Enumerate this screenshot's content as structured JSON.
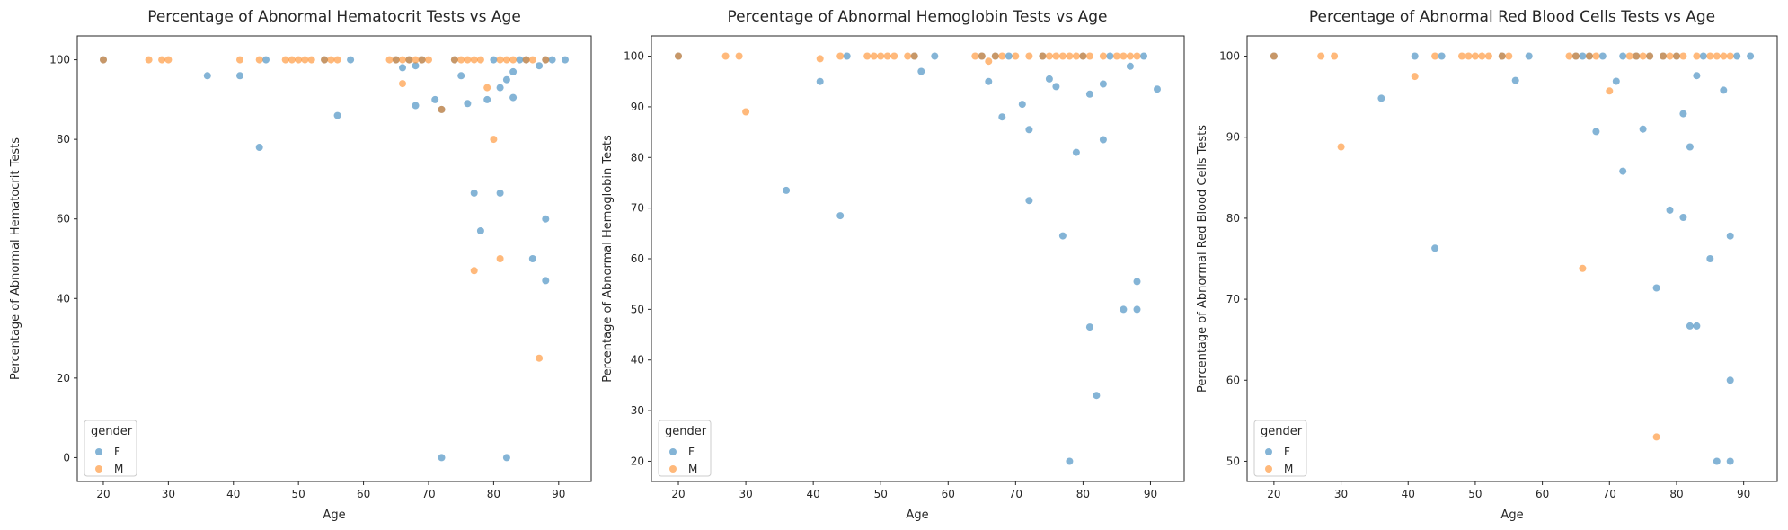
{
  "colors": {
    "F": "#1f77b4",
    "M": "#ff7f0e",
    "axes": "#262626",
    "background": "#ffffff"
  },
  "chart_data": [
    {
      "type": "scatter",
      "title": "Percentage of Abnormal Hematocrit Tests vs Age",
      "xlabel": "Age",
      "ylabel": "Percentage of Abnormal Hematocrit Tests",
      "xlim": [
        16,
        95
      ],
      "ylim": [
        -6,
        106
      ],
      "xticks": [
        20,
        30,
        40,
        50,
        60,
        70,
        80,
        90
      ],
      "yticks": [
        0,
        20,
        40,
        60,
        80,
        100
      ],
      "grid": false,
      "legend": {
        "title": "gender",
        "placement": "lower-left",
        "entries": [
          "F",
          "M"
        ]
      },
      "series": [
        {
          "name": "F",
          "color": "#1f77b4",
          "points": [
            [
              20,
              100
            ],
            [
              36,
              96
            ],
            [
              41,
              96
            ],
            [
              44,
              78
            ],
            [
              45,
              100
            ],
            [
              54,
              100
            ],
            [
              56,
              86
            ],
            [
              58,
              100
            ],
            [
              65,
              100
            ],
            [
              66,
              98
            ],
            [
              67,
              100
            ],
            [
              68,
              88.5
            ],
            [
              68,
              98.5
            ],
            [
              69,
              100
            ],
            [
              71,
              90
            ],
            [
              72,
              87.5
            ],
            [
              72,
              0
            ],
            [
              74,
              100
            ],
            [
              75,
              96
            ],
            [
              76,
              89
            ],
            [
              78,
              57
            ],
            [
              77,
              66.5
            ],
            [
              79,
              90
            ],
            [
              80,
              100
            ],
            [
              81,
              93
            ],
            [
              81,
              66.5
            ],
            [
              82,
              95
            ],
            [
              82,
              0
            ],
            [
              83,
              97
            ],
            [
              83,
              90.5
            ],
            [
              84,
              100
            ],
            [
              85,
              100
            ],
            [
              86,
              50
            ],
            [
              87,
              98.5
            ],
            [
              88,
              100
            ],
            [
              88,
              60
            ],
            [
              88,
              44.5
            ],
            [
              89,
              100
            ],
            [
              91,
              100
            ]
          ]
        },
        {
          "name": "M",
          "color": "#ff7f0e",
          "points": [
            [
              20,
              100
            ],
            [
              27,
              100
            ],
            [
              29,
              100
            ],
            [
              30,
              100
            ],
            [
              41,
              100
            ],
            [
              44,
              100
            ],
            [
              48,
              100
            ],
            [
              49,
              100
            ],
            [
              50,
              100
            ],
            [
              51,
              100
            ],
            [
              52,
              100
            ],
            [
              54,
              100
            ],
            [
              55,
              100
            ],
            [
              56,
              100
            ],
            [
              64,
              100
            ],
            [
              65,
              100
            ],
            [
              66,
              100
            ],
            [
              66,
              94
            ],
            [
              67,
              100
            ],
            [
              68,
              100
            ],
            [
              69,
              100
            ],
            [
              70,
              100
            ],
            [
              72,
              87.5
            ],
            [
              74,
              100
            ],
            [
              75,
              100
            ],
            [
              76,
              100
            ],
            [
              77,
              100
            ],
            [
              77,
              47
            ],
            [
              78,
              100
            ],
            [
              79,
              93
            ],
            [
              80,
              80
            ],
            [
              81,
              100
            ],
            [
              81,
              50
            ],
            [
              82,
              100
            ],
            [
              83,
              100
            ],
            [
              85,
              100
            ],
            [
              86,
              100
            ],
            [
              87,
              25
            ],
            [
              88,
              100
            ]
          ]
        }
      ]
    },
    {
      "type": "scatter",
      "title": "Percentage of Abnormal Hemoglobin Tests vs Age",
      "xlabel": "Age",
      "ylabel": "Percentage of Abnormal Hemoglobin Tests",
      "xlim": [
        16,
        95
      ],
      "ylim": [
        16,
        104
      ],
      "xticks": [
        20,
        30,
        40,
        50,
        60,
        70,
        80,
        90
      ],
      "yticks": [
        20,
        30,
        40,
        50,
        60,
        70,
        80,
        90,
        100
      ],
      "grid": false,
      "legend": {
        "title": "gender",
        "placement": "lower-left",
        "entries": [
          "F",
          "M"
        ]
      },
      "series": [
        {
          "name": "F",
          "color": "#1f77b4",
          "points": [
            [
              20,
              100
            ],
            [
              36,
              73.5
            ],
            [
              41,
              95
            ],
            [
              44,
              68.5
            ],
            [
              45,
              100
            ],
            [
              55,
              100
            ],
            [
              56,
              97
            ],
            [
              58,
              100
            ],
            [
              65,
              100
            ],
            [
              66,
              95
            ],
            [
              67,
              100
            ],
            [
              68,
              88
            ],
            [
              69,
              100
            ],
            [
              71,
              90.5
            ],
            [
              72,
              85.5
            ],
            [
              72,
              71.5
            ],
            [
              74,
              100
            ],
            [
              75,
              95.5
            ],
            [
              76,
              94
            ],
            [
              77,
              64.5
            ],
            [
              78,
              20
            ],
            [
              79,
              81
            ],
            [
              80,
              100
            ],
            [
              81,
              92.5
            ],
            [
              81,
              46.5
            ],
            [
              82,
              33
            ],
            [
              83,
              94.5
            ],
            [
              83,
              83.5
            ],
            [
              84,
              100
            ],
            [
              86,
              50
            ],
            [
              87,
              98
            ],
            [
              88,
              55.5
            ],
            [
              88,
              50
            ],
            [
              89,
              100
            ],
            [
              91,
              93.5
            ]
          ]
        },
        {
          "name": "M",
          "color": "#ff7f0e",
          "points": [
            [
              20,
              100
            ],
            [
              27,
              100
            ],
            [
              29,
              100
            ],
            [
              30,
              89
            ],
            [
              41,
              99.5
            ],
            [
              44,
              100
            ],
            [
              48,
              100
            ],
            [
              49,
              100
            ],
            [
              50,
              100
            ],
            [
              51,
              100
            ],
            [
              52,
              100
            ],
            [
              54,
              100
            ],
            [
              55,
              100
            ],
            [
              64,
              100
            ],
            [
              65,
              100
            ],
            [
              66,
              99
            ],
            [
              67,
              100
            ],
            [
              68,
              100
            ],
            [
              70,
              100
            ],
            [
              72,
              100
            ],
            [
              74,
              100
            ],
            [
              75,
              100
            ],
            [
              76,
              100
            ],
            [
              77,
              100
            ],
            [
              78,
              100
            ],
            [
              79,
              100
            ],
            [
              80,
              100
            ],
            [
              81,
              100
            ],
            [
              83,
              100
            ],
            [
              85,
              100
            ],
            [
              86,
              100
            ],
            [
              87,
              100
            ],
            [
              88,
              100
            ]
          ]
        }
      ]
    },
    {
      "type": "scatter",
      "title": "Percentage of Abnormal Red Blood Cells Tests vs Age",
      "xlabel": "Age",
      "ylabel": "Percentage of Abnormal Red Blood Cells Tests",
      "xlim": [
        16,
        95
      ],
      "ylim": [
        47.5,
        102.5
      ],
      "xticks": [
        20,
        30,
        40,
        50,
        60,
        70,
        80,
        90
      ],
      "yticks": [
        50,
        60,
        70,
        80,
        90,
        100
      ],
      "grid": false,
      "legend": {
        "title": "gender",
        "placement": "lower-left",
        "entries": [
          "F",
          "M"
        ]
      },
      "series": [
        {
          "name": "F",
          "color": "#1f77b4",
          "points": [
            [
              20,
              100
            ],
            [
              36,
              94.8
            ],
            [
              41,
              100
            ],
            [
              44,
              76.3
            ],
            [
              45,
              100
            ],
            [
              54,
              100
            ],
            [
              56,
              97
            ],
            [
              58,
              100
            ],
            [
              65,
              100
            ],
            [
              66,
              100
            ],
            [
              67,
              100
            ],
            [
              68,
              90.7
            ],
            [
              69,
              100
            ],
            [
              71,
              96.9
            ],
            [
              72,
              85.8
            ],
            [
              72,
              100
            ],
            [
              74,
              100
            ],
            [
              75,
              91
            ],
            [
              76,
              100
            ],
            [
              77,
              71.4
            ],
            [
              78,
              100
            ],
            [
              79,
              81
            ],
            [
              80,
              100
            ],
            [
              81,
              92.9
            ],
            [
              81,
              80.1
            ],
            [
              82,
              88.8
            ],
            [
              82,
              66.7
            ],
            [
              83,
              97.6
            ],
            [
              83,
              66.7
            ],
            [
              84,
              100
            ],
            [
              85,
              75
            ],
            [
              86,
              50
            ],
            [
              87,
              95.8
            ],
            [
              88,
              77.8
            ],
            [
              88,
              60
            ],
            [
              88,
              50
            ],
            [
              89,
              100
            ],
            [
              91,
              100
            ]
          ]
        },
        {
          "name": "M",
          "color": "#ff7f0e",
          "points": [
            [
              20,
              100
            ],
            [
              27,
              100
            ],
            [
              29,
              100
            ],
            [
              30,
              88.8
            ],
            [
              41,
              97.5
            ],
            [
              44,
              100
            ],
            [
              48,
              100
            ],
            [
              49,
              100
            ],
            [
              50,
              100
            ],
            [
              51,
              100
            ],
            [
              52,
              100
            ],
            [
              54,
              100
            ],
            [
              55,
              100
            ],
            [
              64,
              100
            ],
            [
              65,
              100
            ],
            [
              66,
              73.8
            ],
            [
              67,
              100
            ],
            [
              68,
              100
            ],
            [
              70,
              95.7
            ],
            [
              73,
              100
            ],
            [
              74,
              100
            ],
            [
              75,
              100
            ],
            [
              76,
              100
            ],
            [
              77,
              53
            ],
            [
              78,
              100
            ],
            [
              79,
              100
            ],
            [
              80,
              100
            ],
            [
              81,
              100
            ],
            [
              83,
              100
            ],
            [
              85,
              100
            ],
            [
              86,
              100
            ],
            [
              87,
              100
            ],
            [
              88,
              100
            ]
          ]
        }
      ]
    }
  ]
}
